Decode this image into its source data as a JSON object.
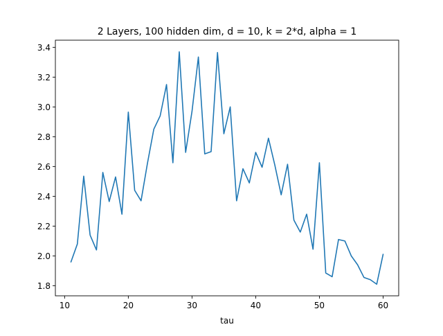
{
  "chart_data": {
    "type": "line",
    "title": "2 Layers, 100 hidden dim, d = 10, k = 2*d, alpha = 1",
    "xlabel": "tau",
    "ylabel": "",
    "xlim": [
      8.55,
      62.45
    ],
    "ylim": [
      1.732,
      3.448
    ],
    "xticks": [
      10,
      20,
      30,
      40,
      50,
      60
    ],
    "yticks": [
      1.8,
      2.0,
      2.2,
      2.4,
      2.6,
      2.8,
      3.0,
      3.2,
      3.4
    ],
    "xtick_labels": [
      "10",
      "20",
      "30",
      "40",
      "50",
      "60"
    ],
    "ytick_labels": [
      "1.8",
      "2.0",
      "2.2",
      "2.4",
      "2.6",
      "2.8",
      "3.0",
      "3.2",
      "3.4"
    ],
    "grid": false,
    "series": [
      {
        "color": "#1f77b4",
        "x": [
          11,
          12,
          13,
          14,
          15,
          16,
          17,
          18,
          19,
          20,
          21,
          22,
          23,
          24,
          25,
          26,
          27,
          28,
          29,
          30,
          31,
          32,
          33,
          34,
          35,
          36,
          37,
          38,
          39,
          40,
          41,
          42,
          43,
          44,
          45,
          46,
          47,
          48,
          49,
          50,
          51,
          52,
          53,
          54,
          55,
          56,
          57,
          58,
          59,
          60
        ],
        "y": [
          1.96,
          2.08,
          2.535,
          2.14,
          2.04,
          2.56,
          2.365,
          2.53,
          2.28,
          2.965,
          2.44,
          2.37,
          2.62,
          2.85,
          2.94,
          3.15,
          2.625,
          3.37,
          2.695,
          2.97,
          3.335,
          2.685,
          2.7,
          3.365,
          2.82,
          3.0,
          2.37,
          2.585,
          2.49,
          2.695,
          2.595,
          2.79,
          2.61,
          2.41,
          2.615,
          2.24,
          2.16,
          2.28,
          2.045,
          2.625,
          1.885,
          1.86,
          2.11,
          2.1,
          2.0,
          1.94,
          1.855,
          1.84,
          1.81,
          2.01
        ]
      }
    ]
  }
}
